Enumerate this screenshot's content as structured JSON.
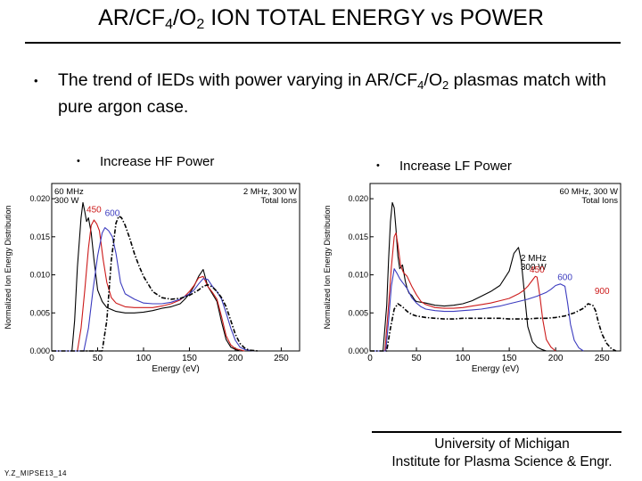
{
  "slide": {
    "title_parts": [
      "AR/CF",
      "4",
      "/O",
      "2",
      " ION TOTAL ENERGY vs POWER"
    ],
    "bullet_parts": [
      "The trend of IEDs with power varying in AR/CF",
      "4",
      "/O",
      "2",
      " plasmas match with pure argon case."
    ],
    "bullet_marker": "•",
    "left_sub_bullet": "Increase HF Power",
    "right_sub_bullet": "Increase LF Power",
    "footer_line1": "University of Michigan",
    "footer_line2": "Institute for Plasma Science & Engr.",
    "credit": "Y.Z_MIPSE13_14"
  },
  "chart_data": [
    {
      "type": "line",
      "title": "",
      "xlabel": "Energy (eV)",
      "ylabel": "Normalized Ion Energy Distribution",
      "xlim": [
        0,
        270
      ],
      "ylim": [
        0,
        0.022
      ],
      "xticks": [
        0,
        50,
        100,
        150,
        200,
        250
      ],
      "yticks": [
        0.0,
        0.005,
        0.01,
        0.015,
        0.02
      ],
      "ytick_labels": [
        "0.000",
        "0.005",
        "0.010",
        "0.015",
        "0.020"
      ],
      "corner_text_left": [
        "60 MHz",
        "300 W"
      ],
      "corner_text_right": [
        "2 MHz, 300 W",
        "Total Ions"
      ],
      "series": [
        {
          "name": "300",
          "color": "#000000",
          "dash": "solid",
          "x": [
            0,
            22,
            25,
            28,
            32,
            34,
            36,
            38,
            40,
            43,
            46,
            50,
            55,
            60,
            70,
            80,
            90,
            100,
            110,
            120,
            130,
            140,
            145,
            150,
            155,
            160,
            165,
            170,
            175,
            180,
            185,
            190,
            195,
            200,
            205
          ],
          "y": [
            0,
            0,
            0.004,
            0.011,
            0.0175,
            0.0195,
            0.0183,
            0.017,
            0.0175,
            0.0155,
            0.012,
            0.008,
            0.0065,
            0.0057,
            0.0052,
            0.005,
            0.005,
            0.0051,
            0.0053,
            0.0056,
            0.0058,
            0.0062,
            0.0068,
            0.0075,
            0.0085,
            0.0098,
            0.0107,
            0.0085,
            0.0075,
            0.0065,
            0.0038,
            0.0015,
            0.0005,
            0.0002,
            0
          ]
        },
        {
          "name": "450",
          "color": "#cc1a1a",
          "dash": "solid",
          "x": [
            0,
            28,
            32,
            36,
            40,
            43,
            46,
            49,
            52,
            56,
            60,
            65,
            70,
            80,
            90,
            100,
            110,
            120,
            130,
            140,
            145,
            150,
            155,
            160,
            165,
            170,
            175,
            180,
            185,
            190,
            195,
            200,
            210
          ],
          "y": [
            0,
            0,
            0.003,
            0.008,
            0.0135,
            0.0165,
            0.0172,
            0.0167,
            0.0158,
            0.012,
            0.009,
            0.007,
            0.0063,
            0.0058,
            0.0057,
            0.0057,
            0.0057,
            0.0059,
            0.0062,
            0.0067,
            0.0072,
            0.0078,
            0.0086,
            0.0096,
            0.0098,
            0.0085,
            0.0077,
            0.0068,
            0.0045,
            0.002,
            0.0008,
            0.0003,
            0
          ]
        },
        {
          "name": "600",
          "color": "#3b3bbf",
          "dash": "solid",
          "x": [
            0,
            35,
            40,
            45,
            50,
            55,
            58,
            62,
            66,
            70,
            75,
            80,
            90,
            100,
            110,
            120,
            130,
            140,
            150,
            155,
            160,
            165,
            170,
            175,
            180,
            185,
            190,
            195,
            200,
            205,
            210,
            220
          ],
          "y": [
            0,
            0,
            0.003,
            0.008,
            0.0125,
            0.0155,
            0.0162,
            0.0158,
            0.015,
            0.0128,
            0.009,
            0.0075,
            0.0068,
            0.0063,
            0.0062,
            0.0062,
            0.0064,
            0.0068,
            0.0075,
            0.008,
            0.0088,
            0.0095,
            0.0094,
            0.0085,
            0.0078,
            0.0068,
            0.005,
            0.003,
            0.0014,
            0.0005,
            0.0002,
            0
          ]
        },
        {
          "name": "900",
          "color": "#000000",
          "dash": "dashdot",
          "x": [
            0,
            55,
            60,
            65,
            70,
            73,
            76,
            80,
            85,
            90,
            95,
            100,
            110,
            120,
            130,
            140,
            150,
            160,
            165,
            170,
            175,
            180,
            185,
            190,
            195,
            200,
            205,
            210,
            215,
            225
          ],
          "y": [
            0,
            0,
            0.004,
            0.012,
            0.0168,
            0.0177,
            0.0175,
            0.0165,
            0.0148,
            0.0128,
            0.0112,
            0.0098,
            0.0078,
            0.007,
            0.0068,
            0.0069,
            0.0073,
            0.008,
            0.0085,
            0.0087,
            0.0084,
            0.0078,
            0.007,
            0.0058,
            0.004,
            0.0022,
            0.001,
            0.0004,
            0.0001,
            0
          ]
        }
      ],
      "point_labels": [
        {
          "text": "450",
          "color": "#cc1a1a",
          "x": 46,
          "y": 0.0182
        },
        {
          "text": "600",
          "color": "#3b3bbf",
          "x": 66,
          "y": 0.0177
        }
      ]
    },
    {
      "type": "line",
      "title": "",
      "xlabel": "Energy (eV)",
      "ylabel": "Normalized Ion Energy Distribution",
      "xlim": [
        0,
        270
      ],
      "ylim": [
        0,
        0.022
      ],
      "xticks": [
        0,
        50,
        100,
        150,
        200,
        250
      ],
      "yticks": [
        0.0,
        0.005,
        0.01,
        0.015,
        0.02
      ],
      "ytick_labels": [
        "0.000",
        "0.005",
        "0.010",
        "0.015",
        "0.020"
      ],
      "corner_text_left": [],
      "corner_text_right": [
        "60 MHz, 300 W",
        "Total Ions"
      ],
      "annotation_text": [
        "2 MHz",
        "300 W"
      ],
      "series": [
        {
          "name": "300",
          "color": "#000000",
          "dash": "solid",
          "x": [
            0,
            14,
            18,
            20,
            22,
            24,
            26,
            28,
            30,
            32,
            35,
            38,
            40,
            42,
            45,
            48,
            50,
            55,
            60,
            70,
            80,
            90,
            100,
            110,
            120,
            130,
            140,
            150,
            155,
            160,
            163,
            167,
            170,
            175,
            180,
            185,
            190
          ],
          "y": [
            0,
            0,
            0.006,
            0.012,
            0.017,
            0.0195,
            0.0188,
            0.016,
            0.0125,
            0.0108,
            0.0113,
            0.0092,
            0.0082,
            0.0076,
            0.0073,
            0.0067,
            0.0065,
            0.0064,
            0.0063,
            0.006,
            0.0059,
            0.006,
            0.0062,
            0.0066,
            0.0072,
            0.0078,
            0.0086,
            0.0105,
            0.0128,
            0.0136,
            0.0118,
            0.0068,
            0.0032,
            0.0012,
            0.0005,
            0.0002,
            0
          ]
        },
        {
          "name": "450",
          "color": "#cc1a1a",
          "dash": "solid",
          "x": [
            0,
            16,
            20,
            23,
            26,
            28,
            30,
            33,
            36,
            40,
            45,
            50,
            55,
            60,
            70,
            80,
            90,
            100,
            110,
            120,
            130,
            140,
            150,
            160,
            165,
            170,
            175,
            178,
            180,
            183,
            186,
            190,
            195,
            200
          ],
          "y": [
            0,
            0,
            0.006,
            0.011,
            0.015,
            0.0155,
            0.014,
            0.0112,
            0.0103,
            0.0098,
            0.0085,
            0.0074,
            0.0065,
            0.0061,
            0.0057,
            0.0056,
            0.0056,
            0.0057,
            0.0059,
            0.0061,
            0.0063,
            0.0066,
            0.0069,
            0.0075,
            0.0079,
            0.0085,
            0.0093,
            0.0098,
            0.0097,
            0.0072,
            0.0042,
            0.0015,
            0.0005,
            0
          ]
        },
        {
          "name": "600",
          "color": "#3b3bbf",
          "dash": "solid",
          "x": [
            0,
            17,
            20,
            23,
            26,
            29,
            32,
            35,
            40,
            45,
            50,
            55,
            60,
            70,
            80,
            90,
            100,
            110,
            120,
            130,
            140,
            150,
            160,
            170,
            180,
            190,
            195,
            200,
            205,
            210,
            213,
            216,
            220,
            225,
            230
          ],
          "y": [
            0,
            0,
            0.004,
            0.0085,
            0.0108,
            0.0102,
            0.0095,
            0.009,
            0.0082,
            0.007,
            0.0063,
            0.0058,
            0.0055,
            0.0053,
            0.0052,
            0.0052,
            0.0053,
            0.0054,
            0.0055,
            0.0057,
            0.0059,
            0.0062,
            0.0065,
            0.0068,
            0.0072,
            0.0077,
            0.0081,
            0.0086,
            0.0088,
            0.0085,
            0.0062,
            0.0035,
            0.0014,
            0.0004,
            0
          ]
        },
        {
          "name": "900",
          "color": "#000000",
          "dash": "dashdot",
          "x": [
            0,
            18,
            22,
            26,
            30,
            35,
            40,
            45,
            50,
            60,
            70,
            80,
            90,
            100,
            110,
            120,
            130,
            140,
            150,
            160,
            170,
            180,
            190,
            200,
            210,
            220,
            230,
            235,
            240,
            243,
            246,
            250,
            255,
            260,
            265
          ],
          "y": [
            0,
            0,
            0.003,
            0.0055,
            0.0062,
            0.0058,
            0.0052,
            0.0048,
            0.0046,
            0.0044,
            0.0043,
            0.0042,
            0.0042,
            0.0043,
            0.0043,
            0.0043,
            0.0043,
            0.0043,
            0.0042,
            0.0042,
            0.0042,
            0.0043,
            0.0043,
            0.0044,
            0.0046,
            0.005,
            0.0056,
            0.0062,
            0.006,
            0.0053,
            0.0038,
            0.0022,
            0.001,
            0.0003,
            0
          ]
        }
      ],
      "point_labels": [
        {
          "text": "450",
          "color": "#cc1a1a",
          "x": 180,
          "y": 0.0103
        },
        {
          "text": "600",
          "color": "#3b3bbf",
          "x": 210,
          "y": 0.0093
        },
        {
          "text": "900",
          "color": "#cc1a1a",
          "x": 250,
          "y": 0.0075
        }
      ]
    }
  ]
}
